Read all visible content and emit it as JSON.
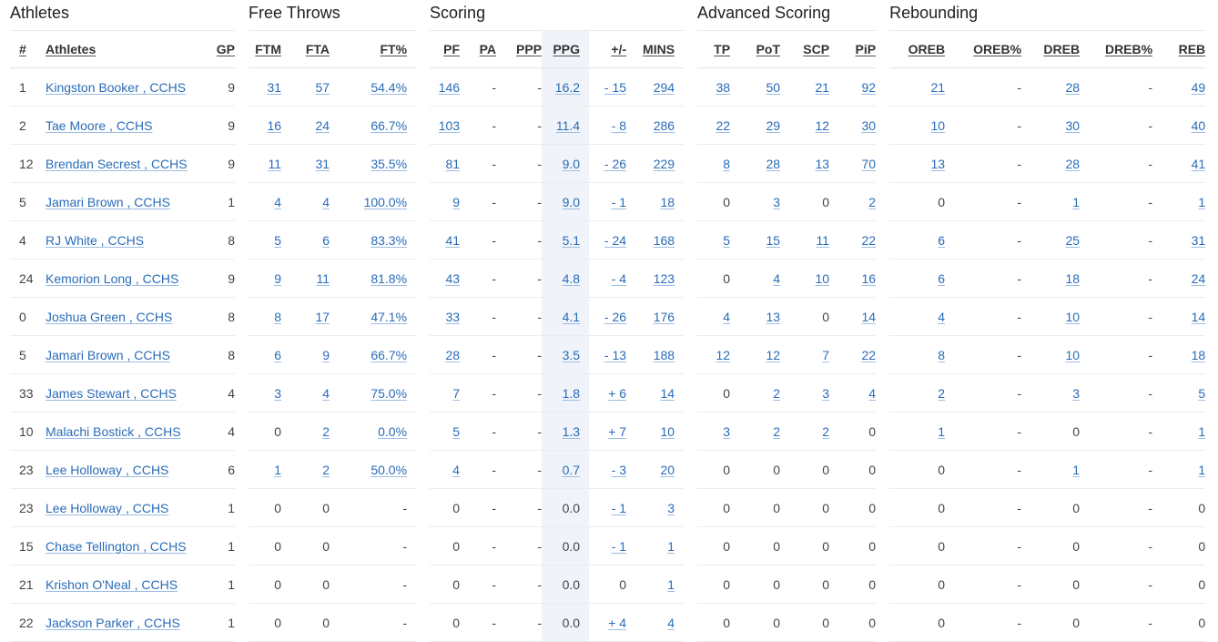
{
  "groups": {
    "athletes": "Athletes",
    "free_throws": "Free Throws",
    "scoring": "Scoring",
    "advanced": "Advanced Scoring",
    "rebounding": "Rebounding"
  },
  "headers": {
    "num": "#",
    "athletes": "Athletes",
    "gp": "GP",
    "ftm": "FTM",
    "fta": "FTA",
    "ftp": "FT%",
    "pf": "PF",
    "pa": "PA",
    "ppp": "PPP",
    "ppg": "PPG",
    "pm": "+/-",
    "mins": "MINS",
    "tp": "TP",
    "pot": "PoT",
    "scp": "SCP",
    "pip": "PiP",
    "oreb": "OREB",
    "orebp": "OREB%",
    "dreb": "DREB",
    "drebp": "DREB%",
    "reb": "REB"
  },
  "columns": [
    "num",
    "name",
    "gp",
    "ftm",
    "fta",
    "ftp",
    "pf",
    "pa",
    "ppp",
    "ppg",
    "pm",
    "mins",
    "tp",
    "pot",
    "scp",
    "pip",
    "oreb",
    "orebp",
    "dreb",
    "drebp",
    "reb"
  ],
  "rows": [
    [
      "1",
      "Kingston Booker , CCHS",
      "9",
      "31",
      "57",
      "54.4%",
      "146",
      "-",
      "-",
      "16.2",
      "- 15",
      "294",
      "38",
      "50",
      "21",
      "92",
      "21",
      "-",
      "28",
      "-",
      "49"
    ],
    [
      "2",
      "Tae Moore , CCHS",
      "9",
      "16",
      "24",
      "66.7%",
      "103",
      "-",
      "-",
      "11.4",
      "- 8",
      "286",
      "22",
      "29",
      "12",
      "30",
      "10",
      "-",
      "30",
      "-",
      "40"
    ],
    [
      "12",
      "Brendan Secrest , CCHS",
      "9",
      "11",
      "31",
      "35.5%",
      "81",
      "-",
      "-",
      "9.0",
      "- 26",
      "229",
      "8",
      "28",
      "13",
      "70",
      "13",
      "-",
      "28",
      "-",
      "41"
    ],
    [
      "5",
      "Jamari Brown , CCHS",
      "1",
      "4",
      "4",
      "100.0%",
      "9",
      "-",
      "-",
      "9.0",
      "- 1",
      "18",
      "0",
      "3",
      "0",
      "2",
      "0",
      "-",
      "1",
      "-",
      "1"
    ],
    [
      "4",
      "RJ White , CCHS",
      "8",
      "5",
      "6",
      "83.3%",
      "41",
      "-",
      "-",
      "5.1",
      "- 24",
      "168",
      "5",
      "15",
      "11",
      "22",
      "6",
      "-",
      "25",
      "-",
      "31"
    ],
    [
      "24",
      "Kemorion Long , CCHS",
      "9",
      "9",
      "11",
      "81.8%",
      "43",
      "-",
      "-",
      "4.8",
      "- 4",
      "123",
      "0",
      "4",
      "10",
      "16",
      "6",
      "-",
      "18",
      "-",
      "24"
    ],
    [
      "0",
      "Joshua Green , CCHS",
      "8",
      "8",
      "17",
      "47.1%",
      "33",
      "-",
      "-",
      "4.1",
      "- 26",
      "176",
      "4",
      "13",
      "0",
      "14",
      "4",
      "-",
      "10",
      "-",
      "14"
    ],
    [
      "5",
      "Jamari Brown , CCHS",
      "8",
      "6",
      "9",
      "66.7%",
      "28",
      "-",
      "-",
      "3.5",
      "- 13",
      "188",
      "12",
      "12",
      "7",
      "22",
      "8",
      "-",
      "10",
      "-",
      "18"
    ],
    [
      "33",
      "James Stewart , CCHS",
      "4",
      "3",
      "4",
      "75.0%",
      "7",
      "-",
      "-",
      "1.8",
      "+ 6",
      "14",
      "0",
      "2",
      "3",
      "4",
      "2",
      "-",
      "3",
      "-",
      "5"
    ],
    [
      "10",
      "Malachi Bostick , CCHS",
      "4",
      "0",
      "2",
      "0.0%",
      "5",
      "-",
      "-",
      "1.3",
      "+ 7",
      "10",
      "3",
      "2",
      "2",
      "0",
      "1",
      "-",
      "0",
      "-",
      "1"
    ],
    [
      "23",
      "Lee Holloway , CCHS",
      "6",
      "1",
      "2",
      "50.0%",
      "4",
      "-",
      "-",
      "0.7",
      "- 3",
      "20",
      "0",
      "0",
      "0",
      "0",
      "0",
      "-",
      "1",
      "-",
      "1"
    ],
    [
      "23",
      "Lee Holloway , CCHS",
      "1",
      "0",
      "0",
      "-",
      "0",
      "-",
      "-",
      "0.0",
      "- 1",
      "3",
      "0",
      "0",
      "0",
      "0",
      "0",
      "-",
      "0",
      "-",
      "0"
    ],
    [
      "15",
      "Chase Tellington , CCHS",
      "1",
      "0",
      "0",
      "-",
      "0",
      "-",
      "-",
      "0.0",
      "- 1",
      "1",
      "0",
      "0",
      "0",
      "0",
      "0",
      "-",
      "0",
      "-",
      "0"
    ],
    [
      "21",
      "Krishon O'Neal , CCHS",
      "1",
      "0",
      "0",
      "-",
      "0",
      "-",
      "-",
      "0.0",
      "0",
      "1",
      "0",
      "0",
      "0",
      "0",
      "0",
      "-",
      "0",
      "-",
      "0"
    ],
    [
      "22",
      "Jackson Parker , CCHS",
      "1",
      "0",
      "0",
      "-",
      "0",
      "-",
      "-",
      "0.0",
      "+ 4",
      "4",
      "0",
      "0",
      "0",
      "0",
      "0",
      "-",
      "0",
      "-",
      "0"
    ]
  ],
  "linked": [
    {
      "ftm": true,
      "fta": true,
      "ftp": true,
      "pf": true,
      "ppg": true,
      "pm": true,
      "mins": true,
      "tp": true,
      "pot": true,
      "scp": true,
      "pip": true,
      "oreb": true,
      "dreb": true,
      "reb": true
    },
    {
      "ftm": true,
      "fta": true,
      "ftp": true,
      "pf": true,
      "ppg": true,
      "pm": true,
      "mins": true,
      "tp": true,
      "pot": true,
      "scp": true,
      "pip": true,
      "oreb": true,
      "dreb": true,
      "reb": true
    },
    {
      "ftm": true,
      "fta": true,
      "ftp": true,
      "pf": true,
      "ppg": true,
      "pm": true,
      "mins": true,
      "tp": true,
      "pot": true,
      "scp": true,
      "pip": true,
      "oreb": true,
      "dreb": true,
      "reb": true
    },
    {
      "ftm": true,
      "fta": true,
      "ftp": true,
      "pf": true,
      "ppg": true,
      "pm": true,
      "mins": true,
      "pot": true,
      "pip": true,
      "dreb": true,
      "reb": true
    },
    {
      "ftm": true,
      "fta": true,
      "ftp": true,
      "pf": true,
      "ppg": true,
      "pm": true,
      "mins": true,
      "tp": true,
      "pot": true,
      "scp": true,
      "pip": true,
      "oreb": true,
      "dreb": true,
      "reb": true
    },
    {
      "ftm": true,
      "fta": true,
      "ftp": true,
      "pf": true,
      "ppg": true,
      "pm": true,
      "mins": true,
      "pot": true,
      "scp": true,
      "pip": true,
      "oreb": true,
      "dreb": true,
      "reb": true
    },
    {
      "ftm": true,
      "fta": true,
      "ftp": true,
      "pf": true,
      "ppg": true,
      "pm": true,
      "mins": true,
      "tp": true,
      "pot": true,
      "pip": true,
      "oreb": true,
      "dreb": true,
      "reb": true
    },
    {
      "ftm": true,
      "fta": true,
      "ftp": true,
      "pf": true,
      "ppg": true,
      "pm": true,
      "mins": true,
      "tp": true,
      "pot": true,
      "scp": true,
      "pip": true,
      "oreb": true,
      "dreb": true,
      "reb": true
    },
    {
      "ftm": true,
      "fta": true,
      "ftp": true,
      "pf": true,
      "ppg": true,
      "pm": true,
      "mins": true,
      "pot": true,
      "scp": true,
      "pip": true,
      "oreb": true,
      "dreb": true,
      "reb": true
    },
    {
      "fta": true,
      "ftp": true,
      "pf": true,
      "ppg": true,
      "pm": true,
      "mins": true,
      "tp": true,
      "pot": true,
      "scp": true,
      "oreb": true,
      "reb": true
    },
    {
      "ftm": true,
      "fta": true,
      "ftp": true,
      "pf": true,
      "ppg": true,
      "pm": true,
      "mins": true,
      "dreb": true,
      "reb": true
    },
    {
      "pm": true,
      "mins": true
    },
    {
      "pm": true,
      "mins": true
    },
    {
      "mins": true
    },
    {
      "pm": true,
      "mins": true
    }
  ]
}
